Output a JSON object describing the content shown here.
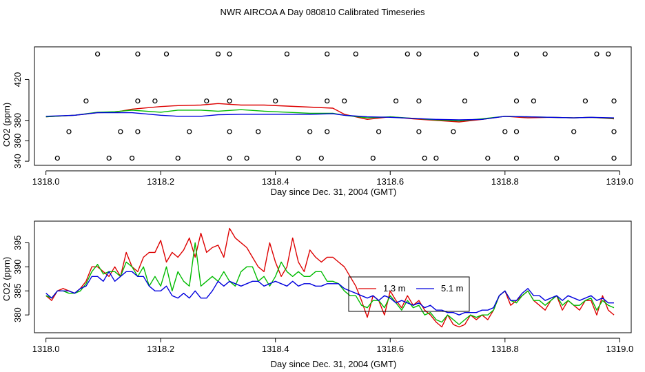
{
  "title": "NWR AIRCOA A  Day 080810  Calibrated Timeseries",
  "chart_data": [
    {
      "type": "line",
      "name": "top",
      "xlabel": "Day since Dec. 31, 2004 (GMT)",
      "ylabel": "CO2 (ppm)",
      "xlim": [
        1317.98,
        1319.02
      ],
      "ylim": [
        336,
        452
      ],
      "xticks": [
        1318.0,
        1318.2,
        1318.4,
        1318.6,
        1318.8,
        1319.0
      ],
      "xtick_labels": [
        "1318.0",
        "1318.2",
        "1318.4",
        "1318.6",
        "1318.8",
        "1319.0"
      ],
      "yticks": [
        340,
        360,
        380,
        420
      ],
      "ytick_labels": [
        "340",
        "360",
        "380",
        "420"
      ],
      "series": [
        {
          "name": "red",
          "color": "#dd0000",
          "x": [
            1318.0,
            1318.05,
            1318.09,
            1318.12,
            1318.15,
            1318.2,
            1318.23,
            1318.27,
            1318.3,
            1318.34,
            1318.38,
            1318.42,
            1318.46,
            1318.5,
            1318.52,
            1318.56,
            1318.6,
            1318.64,
            1318.68,
            1318.72,
            1318.76,
            1318.8,
            1318.84,
            1318.88,
            1318.92,
            1318.95,
            1318.99
          ],
          "y": [
            383.5,
            385,
            387.5,
            388,
            391,
            393.5,
            394.5,
            395,
            396.5,
            395,
            395,
            394,
            393,
            392,
            386,
            381,
            383.5,
            381.5,
            380,
            378.5,
            381,
            384,
            382.5,
            383,
            382.5,
            383,
            381.5
          ]
        },
        {
          "name": "green",
          "color": "#00bb00",
          "x": [
            1318.0,
            1318.05,
            1318.09,
            1318.12,
            1318.15,
            1318.2,
            1318.23,
            1318.27,
            1318.3,
            1318.34,
            1318.38,
            1318.42,
            1318.46,
            1318.5,
            1318.52,
            1318.56,
            1318.6,
            1318.64,
            1318.68,
            1318.72,
            1318.76,
            1318.8,
            1318.84,
            1318.88,
            1318.92,
            1318.95,
            1318.99
          ],
          "y": [
            383.5,
            385,
            388,
            388.5,
            390,
            388,
            390,
            390,
            389,
            390.5,
            389,
            388,
            387,
            387,
            385,
            382.5,
            383.5,
            382,
            380.5,
            379.5,
            381.5,
            384,
            383.5,
            383,
            382.5,
            383,
            382
          ]
        },
        {
          "name": "blue",
          "color": "#0000dd",
          "x": [
            1318.0,
            1318.05,
            1318.09,
            1318.12,
            1318.15,
            1318.2,
            1318.23,
            1318.27,
            1318.3,
            1318.34,
            1318.38,
            1318.42,
            1318.46,
            1318.5,
            1318.52,
            1318.56,
            1318.6,
            1318.64,
            1318.68,
            1318.72,
            1318.76,
            1318.8,
            1318.84,
            1318.88,
            1318.92,
            1318.95,
            1318.99
          ],
          "y": [
            384,
            385,
            387.5,
            387.5,
            387.5,
            385,
            384,
            384,
            385.5,
            386,
            386,
            386,
            386,
            386.5,
            385,
            383.5,
            383,
            382,
            381,
            380.5,
            381,
            384,
            383.5,
            383,
            382.5,
            383,
            382.5
          ]
        }
      ],
      "points": {
        "x": [
          1318.09,
          1318.16,
          1318.21,
          1318.3,
          1318.32,
          1318.42,
          1318.49,
          1318.54,
          1318.63,
          1318.65,
          1318.75,
          1318.82,
          1318.87,
          1318.96,
          1318.98,
          1318.07,
          1318.16,
          1318.19,
          1318.28,
          1318.32,
          1318.4,
          1318.49,
          1318.52,
          1318.61,
          1318.65,
          1318.73,
          1318.82,
          1318.85,
          1318.94,
          1318.99,
          1318.04,
          1318.13,
          1318.16,
          1318.25,
          1318.32,
          1318.37,
          1318.46,
          1318.49,
          1318.58,
          1318.65,
          1318.71,
          1318.8,
          1318.82,
          1318.92,
          1318.99,
          1318.02,
          1318.11,
          1318.15,
          1318.23,
          1318.32,
          1318.35,
          1318.44,
          1318.48,
          1318.57,
          1318.66,
          1318.68,
          1318.77,
          1318.82,
          1318.89,
          1318.99
        ],
        "y": [
          445,
          445,
          445,
          445,
          445,
          445,
          445,
          445,
          445,
          445,
          445,
          445,
          445,
          445,
          445,
          399,
          399,
          399,
          399,
          399,
          399,
          399,
          399,
          399,
          399,
          399,
          399,
          399,
          399,
          399,
          369,
          369,
          369,
          369,
          369,
          369,
          369,
          369,
          369,
          369,
          369,
          369,
          369,
          369,
          369,
          343,
          343,
          343,
          343,
          343,
          343,
          343,
          343,
          343,
          343,
          343,
          343,
          343,
          343,
          343
        ]
      }
    },
    {
      "type": "line",
      "name": "bottom",
      "xlabel": "Day since Dec. 31, 2004 (GMT)",
      "ylabel": "CO2 (ppm)",
      "xlim": [
        1317.98,
        1319.02
      ],
      "ylim": [
        376.3,
        399.5
      ],
      "xticks": [
        1318.0,
        1318.2,
        1318.4,
        1318.6,
        1318.8,
        1319.0
      ],
      "xtick_labels": [
        "1318.0",
        "1318.2",
        "1318.4",
        "1318.6",
        "1318.8",
        "1319.0"
      ],
      "yticks": [
        380,
        385,
        390,
        395
      ],
      "ytick_labels": [
        "380",
        "385",
        "390",
        "395"
      ],
      "legend": {
        "position": "center",
        "entries": [
          {
            "label": "1.3 m",
            "color": "#dd0000"
          },
          {
            "label": "5.1 m",
            "color": "#0000dd"
          }
        ]
      },
      "series": [
        {
          "name": "1.3 m",
          "color": "#dd0000",
          "x": [
            1318.0,
            1318.01,
            1318.02,
            1318.03,
            1318.04,
            1318.05,
            1318.06,
            1318.07,
            1318.08,
            1318.09,
            1318.1,
            1318.11,
            1318.12,
            1318.13,
            1318.14,
            1318.15,
            1318.16,
            1318.17,
            1318.18,
            1318.19,
            1318.2,
            1318.21,
            1318.22,
            1318.23,
            1318.24,
            1318.25,
            1318.26,
            1318.27,
            1318.28,
            1318.29,
            1318.3,
            1318.31,
            1318.32,
            1318.33,
            1318.34,
            1318.35,
            1318.36,
            1318.37,
            1318.38,
            1318.39,
            1318.4,
            1318.41,
            1318.42,
            1318.43,
            1318.44,
            1318.45,
            1318.46,
            1318.47,
            1318.48,
            1318.49,
            1318.5,
            1318.51,
            1318.52,
            1318.53,
            1318.54,
            1318.55,
            1318.56,
            1318.57,
            1318.58,
            1318.59,
            1318.6,
            1318.61,
            1318.62,
            1318.63,
            1318.64,
            1318.65,
            1318.66,
            1318.67,
            1318.68,
            1318.69,
            1318.7,
            1318.71,
            1318.72,
            1318.73,
            1318.74,
            1318.75,
            1318.76,
            1318.77,
            1318.78,
            1318.79,
            1318.8,
            1318.81,
            1318.82,
            1318.83,
            1318.84,
            1318.85,
            1318.86,
            1318.87,
            1318.88,
            1318.89,
            1318.9,
            1318.91,
            1318.92,
            1318.93,
            1318.94,
            1318.95,
            1318.96,
            1318.97,
            1318.98,
            1318.99
          ],
          "y": [
            384,
            383,
            385,
            385.5,
            385,
            384.5,
            385.5,
            387,
            390,
            390,
            389,
            388,
            390,
            388,
            393,
            390,
            389,
            392,
            393,
            393,
            395.5,
            391,
            393,
            392,
            393.5,
            396,
            392,
            397,
            393,
            394,
            394.5,
            392,
            398,
            396,
            395,
            394,
            392,
            390,
            389,
            395,
            391,
            388,
            390,
            396,
            391,
            389,
            393.5,
            392,
            391,
            392,
            392,
            391,
            390,
            388,
            386,
            383,
            379.5,
            384,
            383,
            380,
            385,
            383,
            381.5,
            384,
            382,
            383,
            381,
            380,
            378.5,
            377.5,
            380,
            378,
            377.5,
            378,
            380,
            379,
            380,
            379,
            381,
            384,
            385,
            382,
            383,
            384,
            385,
            383,
            382,
            381,
            383,
            384,
            381,
            383,
            382,
            381,
            383,
            383,
            380,
            384,
            381,
            380
          ]
        },
        {
          "name": "green",
          "color": "#00bb00",
          "x": [
            1318.0,
            1318.01,
            1318.02,
            1318.03,
            1318.04,
            1318.05,
            1318.06,
            1318.07,
            1318.08,
            1318.09,
            1318.1,
            1318.11,
            1318.12,
            1318.13,
            1318.14,
            1318.15,
            1318.16,
            1318.17,
            1318.18,
            1318.19,
            1318.2,
            1318.21,
            1318.22,
            1318.23,
            1318.24,
            1318.25,
            1318.26,
            1318.27,
            1318.28,
            1318.29,
            1318.3,
            1318.31,
            1318.32,
            1318.33,
            1318.34,
            1318.35,
            1318.36,
            1318.37,
            1318.38,
            1318.39,
            1318.4,
            1318.41,
            1318.42,
            1318.43,
            1318.44,
            1318.45,
            1318.46,
            1318.47,
            1318.48,
            1318.49,
            1318.5,
            1318.51,
            1318.52,
            1318.53,
            1318.54,
            1318.55,
            1318.56,
            1318.57,
            1318.58,
            1318.59,
            1318.6,
            1318.61,
            1318.62,
            1318.63,
            1318.64,
            1318.65,
            1318.66,
            1318.67,
            1318.68,
            1318.69,
            1318.7,
            1318.71,
            1318.72,
            1318.73,
            1318.74,
            1318.75,
            1318.76,
            1318.77,
            1318.78,
            1318.79,
            1318.8,
            1318.81,
            1318.82,
            1318.83,
            1318.84,
            1318.85,
            1318.86,
            1318.87,
            1318.88,
            1318.89,
            1318.9,
            1318.91,
            1318.92,
            1318.93,
            1318.94,
            1318.95,
            1318.96,
            1318.97,
            1318.98,
            1318.99
          ],
          "y": [
            384,
            383.5,
            385,
            385,
            384.5,
            384.5,
            385,
            386.5,
            389,
            390.5,
            388.5,
            389,
            389,
            388,
            391,
            390,
            388,
            390,
            386,
            388,
            386,
            390,
            385,
            389,
            387,
            386,
            395,
            386,
            387,
            388,
            387,
            389,
            387,
            386,
            389,
            390,
            390,
            387,
            388,
            386,
            388,
            391,
            389,
            388,
            389,
            388,
            388,
            389,
            389,
            387,
            387,
            386.5,
            385,
            384,
            384,
            382,
            381.5,
            383,
            383,
            381.5,
            384,
            382.5,
            381,
            383,
            381.5,
            382,
            380,
            380.5,
            379,
            378.5,
            380,
            379,
            378,
            379,
            380,
            379.5,
            380,
            380,
            381,
            384,
            385,
            383,
            382.5,
            384,
            385,
            383,
            383,
            382,
            383,
            384,
            382,
            383,
            382,
            382,
            383,
            383.5,
            381,
            383,
            382,
            381.5
          ]
        },
        {
          "name": "5.1 m",
          "color": "#0000dd",
          "x": [
            1318.0,
            1318.01,
            1318.02,
            1318.03,
            1318.04,
            1318.05,
            1318.06,
            1318.07,
            1318.08,
            1318.09,
            1318.1,
            1318.11,
            1318.12,
            1318.13,
            1318.14,
            1318.15,
            1318.16,
            1318.17,
            1318.18,
            1318.19,
            1318.2,
            1318.21,
            1318.22,
            1318.23,
            1318.24,
            1318.25,
            1318.26,
            1318.27,
            1318.28,
            1318.29,
            1318.3,
            1318.31,
            1318.32,
            1318.33,
            1318.34,
            1318.35,
            1318.36,
            1318.37,
            1318.38,
            1318.39,
            1318.4,
            1318.41,
            1318.42,
            1318.43,
            1318.44,
            1318.45,
            1318.46,
            1318.47,
            1318.48,
            1318.49,
            1318.5,
            1318.51,
            1318.52,
            1318.53,
            1318.54,
            1318.55,
            1318.56,
            1318.57,
            1318.58,
            1318.59,
            1318.6,
            1318.61,
            1318.62,
            1318.63,
            1318.64,
            1318.65,
            1318.66,
            1318.67,
            1318.68,
            1318.69,
            1318.7,
            1318.71,
            1318.72,
            1318.73,
            1318.74,
            1318.75,
            1318.76,
            1318.77,
            1318.78,
            1318.79,
            1318.8,
            1318.81,
            1318.82,
            1318.83,
            1318.84,
            1318.85,
            1318.86,
            1318.87,
            1318.88,
            1318.89,
            1318.9,
            1318.91,
            1318.92,
            1318.93,
            1318.94,
            1318.95,
            1318.96,
            1318.97,
            1318.98,
            1318.99
          ],
          "y": [
            384.5,
            383.5,
            385,
            385,
            385,
            384.5,
            385.5,
            386,
            388,
            388,
            387,
            389,
            387,
            388,
            389,
            389,
            388,
            388,
            386,
            385,
            385,
            386,
            384,
            383.5,
            384.5,
            383.5,
            385,
            383.5,
            383.5,
            385,
            387,
            386,
            387,
            386.5,
            386,
            386.5,
            387,
            387,
            386,
            386.5,
            387,
            386.5,
            386,
            387,
            386,
            386.5,
            386.5,
            386,
            386,
            386.5,
            386.5,
            386.5,
            385.5,
            385,
            384.5,
            384,
            383.5,
            384,
            383,
            384,
            383.5,
            382.5,
            383,
            382.5,
            382,
            382.5,
            381.5,
            382,
            381,
            381,
            380.5,
            380.5,
            380,
            380.5,
            380.5,
            380.5,
            381,
            381,
            381.5,
            384,
            385,
            383,
            383,
            384.5,
            385.5,
            384,
            384,
            383,
            383.5,
            384,
            383,
            384,
            383.5,
            383,
            383.5,
            384,
            383,
            383.5,
            382.5,
            382.5
          ]
        }
      ]
    }
  ]
}
